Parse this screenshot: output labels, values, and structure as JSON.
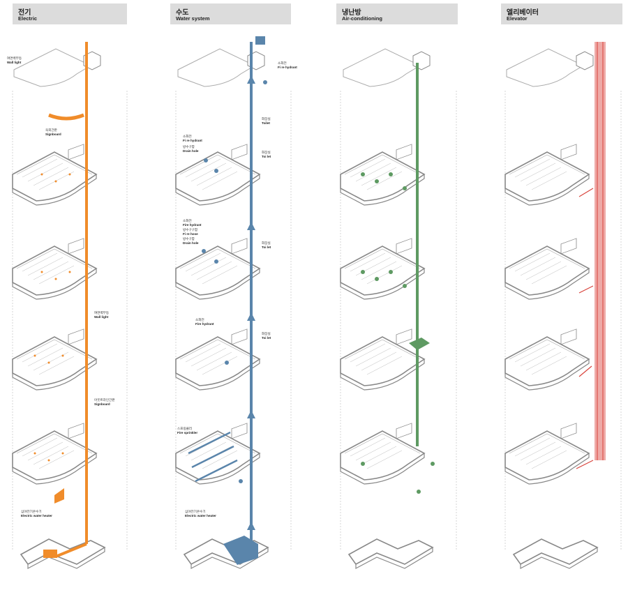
{
  "columns": [
    {
      "key": "electric",
      "title_ko": "전기",
      "title_en": "Electric",
      "accent": "#f08c2a",
      "labels": [
        {
          "ko": "여면벽부등",
          "en": "Wall light"
        },
        {
          "ko": "옥외간판",
          "en": "Signboard"
        },
        {
          "ko": "여면벽부등",
          "en": "Wall light"
        },
        {
          "ko": "아웃트라인간판",
          "en": "Signboard"
        },
        {
          "ko": "심야전기온수기",
          "en": "Electric water heater"
        }
      ]
    },
    {
      "key": "water",
      "title_ko": "수도",
      "title_en": "Water system",
      "accent": "#5a85ab",
      "labels": [
        {
          "ko": "소화전",
          "en": "Fi re hydrant"
        },
        {
          "ko": "화장실",
          "en": "Toilet"
        },
        {
          "ko": "소화전",
          "en": "Fi re hydrant"
        },
        {
          "ko": "방수구함",
          "en": "Drain hole"
        },
        {
          "ko": "화장실",
          "en": "Toi let"
        },
        {
          "ko": "소화전",
          "en": "Fire hydrant"
        },
        {
          "ko": "방수구구함",
          "en": "Fi re hose"
        },
        {
          "ko": "방수구함",
          "en": "Drain hole"
        },
        {
          "ko": "화장실",
          "en": "Toi let"
        },
        {
          "ko": "소화전",
          "en": "Fire hydrant"
        },
        {
          "ko": "화장실",
          "en": "Toi let"
        },
        {
          "ko": "스프링클러",
          "en": "Fire sprinkler"
        },
        {
          "ko": "심야전기온수기",
          "en": "Electric water heater"
        }
      ]
    },
    {
      "key": "hvac",
      "title_ko": "냉난방",
      "title_en": "Air-conditioning",
      "accent": "#5e9a62",
      "labels": []
    },
    {
      "key": "elevator",
      "title_ko": "엘리베이터",
      "title_en": "Elevator",
      "accent": "#d9433b",
      "labels": []
    }
  ]
}
